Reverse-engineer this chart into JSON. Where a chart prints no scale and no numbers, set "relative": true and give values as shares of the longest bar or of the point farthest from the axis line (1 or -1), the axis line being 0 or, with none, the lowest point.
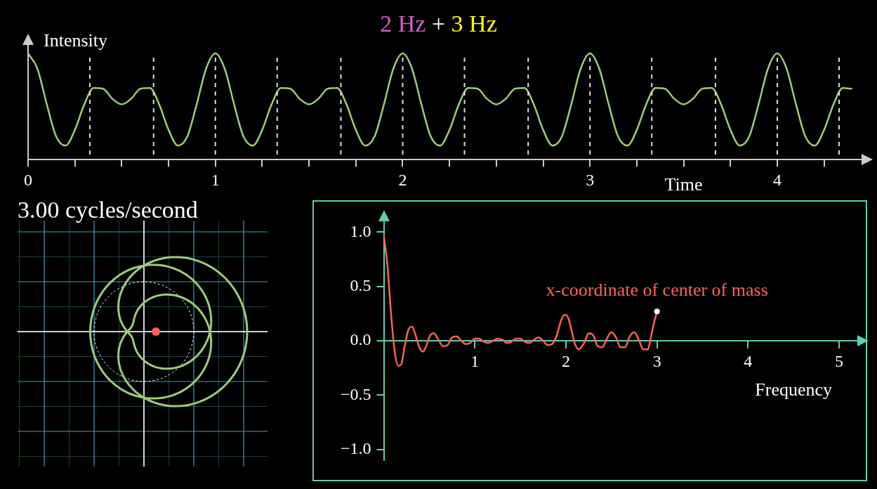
{
  "chart_data": [
    {
      "type": "line",
      "title": "2 Hz + 3 Hz",
      "ylabel": "Intensity",
      "xlabel": "Time",
      "relative": true,
      "color": "#9ccc7c",
      "x": [
        0,
        0.05,
        0.1,
        0.15,
        0.2,
        0.25,
        0.3,
        0.35,
        0.4,
        0.45,
        0.5,
        0.55,
        0.6,
        0.65,
        0.7,
        0.75,
        0.8,
        0.85,
        0.9,
        0.95,
        1,
        1.05,
        1.1,
        1.15,
        1.2,
        1.25,
        1.3,
        1.35,
        1.4,
        1.45,
        1.5,
        1.55,
        1.6,
        1.65,
        1.7,
        1.75,
        1.8,
        1.85,
        1.9,
        1.95,
        2,
        2.05,
        2.1,
        2.15,
        2.2,
        2.25,
        2.3,
        2.35,
        2.4,
        2.45,
        2.5,
        2.55,
        2.6,
        2.65,
        2.7,
        2.75,
        2.8,
        2.85,
        2.9,
        2.95,
        3,
        3.05,
        3.1,
        3.15,
        3.2,
        3.25,
        3.3,
        3.35,
        3.4,
        3.45,
        3.5,
        3.55,
        3.6,
        3.65,
        3.7,
        3.75,
        3.8,
        3.85,
        3.9,
        3.95,
        4,
        4.05,
        4.1,
        4.15,
        4.2,
        4.25,
        4.3,
        4.35,
        4.4
      ],
      "values": [
        1.0,
        0.855,
        0.52,
        0.218,
        0.132,
        0.28,
        0.52,
        0.674,
        0.668,
        0.573,
        0.52,
        0.573,
        0.668,
        0.674,
        0.52,
        0.28,
        0.132,
        0.218,
        0.52,
        0.855,
        1.0,
        0.855,
        0.52,
        0.218,
        0.132,
        0.28,
        0.52,
        0.674,
        0.668,
        0.573,
        0.52,
        0.573,
        0.668,
        0.674,
        0.52,
        0.28,
        0.132,
        0.218,
        0.52,
        0.855,
        1.0,
        0.855,
        0.52,
        0.218,
        0.132,
        0.28,
        0.52,
        0.674,
        0.668,
        0.573,
        0.52,
        0.573,
        0.668,
        0.674,
        0.52,
        0.28,
        0.132,
        0.218,
        0.52,
        0.855,
        1.0,
        0.855,
        0.52,
        0.218,
        0.132,
        0.28,
        0.52,
        0.674,
        0.668,
        0.573,
        0.52,
        0.573,
        0.668,
        0.674,
        0.52,
        0.28,
        0.132,
        0.218,
        0.52,
        0.855,
        1.0,
        0.855,
        0.52,
        0.218,
        0.132,
        0.28,
        0.52,
        0.674,
        0.668
      ],
      "xlim": [
        0,
        4.45
      ],
      "xticks": [
        0,
        {
          "value": 0.25,
          "label": null
        },
        {
          "value": 0.5,
          "label": null
        },
        {
          "value": 0.75,
          "label": null
        },
        1,
        {
          "value": 1.25,
          "label": null
        },
        {
          "value": 1.5,
          "label": null
        },
        {
          "value": 1.75,
          "label": null
        },
        2,
        {
          "value": 2.25,
          "label": null
        },
        {
          "value": 2.5,
          "label": null
        },
        {
          "value": 2.75,
          "label": null
        },
        3,
        {
          "value": 3.25,
          "label": null
        },
        {
          "value": 3.5,
          "label": null
        },
        {
          "value": 3.75,
          "label": null
        },
        4,
        {
          "value": 4.25,
          "label": null
        }
      ],
      "ref_lines": [
        {
          "axis": "x",
          "value": 0.33,
          "line_style": "dashed"
        },
        {
          "axis": "x",
          "value": 0.67,
          "line_style": "dashed"
        },
        {
          "axis": "x",
          "value": 1,
          "line_style": "dashed"
        },
        {
          "axis": "x",
          "value": 1.33,
          "line_style": "dashed"
        },
        {
          "axis": "x",
          "value": 1.67,
          "line_style": "dashed"
        },
        {
          "axis": "x",
          "value": 2,
          "line_style": "dashed"
        },
        {
          "axis": "x",
          "value": 2.33,
          "line_style": "dashed"
        },
        {
          "axis": "x",
          "value": 2.67,
          "line_style": "dashed"
        },
        {
          "axis": "x",
          "value": 3,
          "line_style": "dashed"
        },
        {
          "axis": "x",
          "value": 3.33,
          "line_style": "dashed"
        },
        {
          "axis": "x",
          "value": 3.67,
          "line_style": "dashed"
        },
        {
          "axis": "x",
          "value": 4,
          "line_style": "dashed"
        },
        {
          "axis": "x",
          "value": 4.33,
          "line_style": "dashed"
        }
      ]
    },
    {
      "type": "other",
      "title": "3.00 cycles/second"
    },
    {
      "type": "line",
      "xlabel": "Frequency",
      "color": "#fc6255",
      "x": [
        0,
        0.04,
        0.08,
        0.12,
        0.16,
        0.19,
        0.23,
        0.27,
        0.31,
        0.35,
        0.39,
        0.43,
        0.47,
        0.51,
        0.55,
        0.6,
        0.65,
        0.7,
        0.75,
        0.8,
        0.85,
        0.9,
        0.95,
        1,
        1.05,
        1.1,
        1.15,
        1.2,
        1.25,
        1.3,
        1.35,
        1.4,
        1.45,
        1.5,
        1.55,
        1.6,
        1.65,
        1.7,
        1.75,
        1.8,
        1.85,
        1.9,
        1.94,
        1.97,
        2,
        2.03,
        2.06,
        2.1,
        2.14,
        2.2,
        2.25,
        2.3,
        2.35,
        2.4,
        2.45,
        2.5,
        2.55,
        2.6,
        2.65,
        2.7,
        2.75,
        2.8,
        2.85,
        2.9,
        2.93,
        2.96,
        3
      ],
      "values": [
        0.97,
        0.7,
        0.25,
        -0.1,
        -0.23,
        -0.22,
        -0.05,
        0.1,
        0.13,
        0.05,
        -0.06,
        -0.1,
        -0.04,
        0.05,
        0.07,
        0.01,
        -0.05,
        -0.04,
        0.03,
        0.04,
        0,
        -0.03,
        -0.02,
        0.02,
        0.02,
        -0.01,
        -0.02,
        0,
        0.02,
        0.01,
        -0.02,
        -0.01,
        0.02,
        0.02,
        -0.01,
        -0.02,
        0.01,
        0.03,
        0,
        -0.04,
        -0.03,
        0.05,
        0.17,
        0.23,
        0.24,
        0.2,
        0.1,
        -0.03,
        -0.08,
        -0.02,
        0.07,
        0.05,
        -0.05,
        -0.06,
        0.02,
        0.08,
        0.03,
        -0.06,
        -0.06,
        0.04,
        0.08,
        0.01,
        -0.08,
        -0.08,
        0.02,
        0.14,
        0.27
      ],
      "xlim": [
        0,
        5.2
      ],
      "xticks": [
        1,
        2,
        3,
        4,
        5
      ],
      "ylim": [
        -1.1,
        1.1
      ],
      "yticks": [
        {
          "value": -1,
          "label": "−1.0"
        },
        {
          "value": -0.5,
          "label": "−0.5"
        },
        {
          "value": 0,
          "label": "0.0"
        },
        0.5,
        {
          "value": 1,
          "label": "1.0"
        }
      ],
      "annotations": [
        {
          "text": "x-coordinate of center of mass",
          "x": 3,
          "y": 0.27
        }
      ]
    }
  ]
}
